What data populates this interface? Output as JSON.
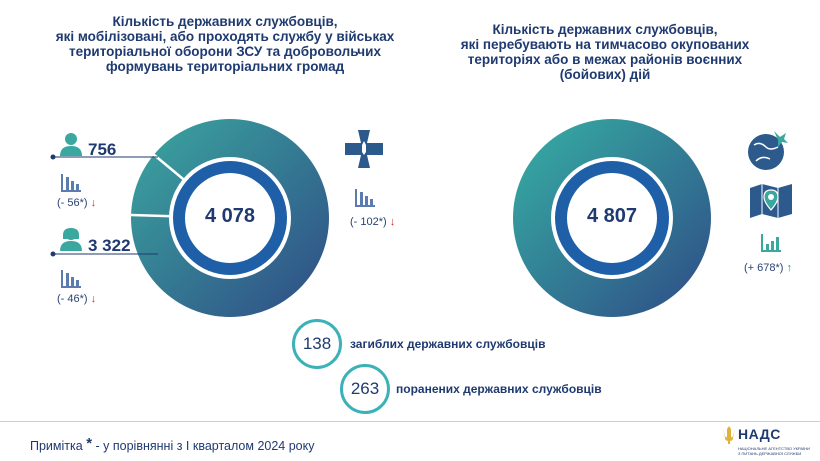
{
  "left": {
    "title_lines": [
      "Кількість державних службовців,",
      "які мобілізовані, або проходять службу у військах",
      "територіальної оборони ЗСУ та добровольчих",
      "формувань територіальних громад"
    ],
    "total": "4 078",
    "men": {
      "value": "756",
      "change": "(- 56*)",
      "arrow": "↓"
    },
    "women": {
      "value": "3 322",
      "change": "(- 46*)",
      "arrow": "↓"
    },
    "cross": {
      "change": "(- 102*)",
      "arrow": "↓"
    },
    "segments": [
      {
        "label": "756",
        "value": 756,
        "color": "#3bb2a2"
      },
      {
        "label": "3 322",
        "value": 3322,
        "color": "#2c5a8c"
      }
    ]
  },
  "right": {
    "title_lines": [
      "Кількість державних службовців,",
      "які перебувають на тимчасово окупованих",
      "територіях або в межах районів воєнних",
      "(бойових) дій"
    ],
    "total": "4 807",
    "change": "(+ 678*)",
    "arrow": "↑"
  },
  "stats": {
    "killed_value": "138",
    "killed_label": "загиблих державних службовців",
    "wounded_value": "263",
    "wounded_label": "поранених державних службовців"
  },
  "footnote": {
    "prefix": "Примітка",
    "star": "*",
    "text": "- у порівнянні з I кварталом 2024 року"
  },
  "logo": {
    "name": "НАДС",
    "sub_lines": [
      "НАЦІОНАЛЬНЕ АГЕНТСТВО УКРАЇНИ",
      "З ПИТАНЬ ДЕРЖАВНОЇ СЛУЖБИ"
    ]
  },
  "colors": {
    "primary": "#1f3a70",
    "teal": "#3bb2a2",
    "ring_blue": "#1e5fa8",
    "down": "#d3272c",
    "up": "#1aa35a"
  }
}
